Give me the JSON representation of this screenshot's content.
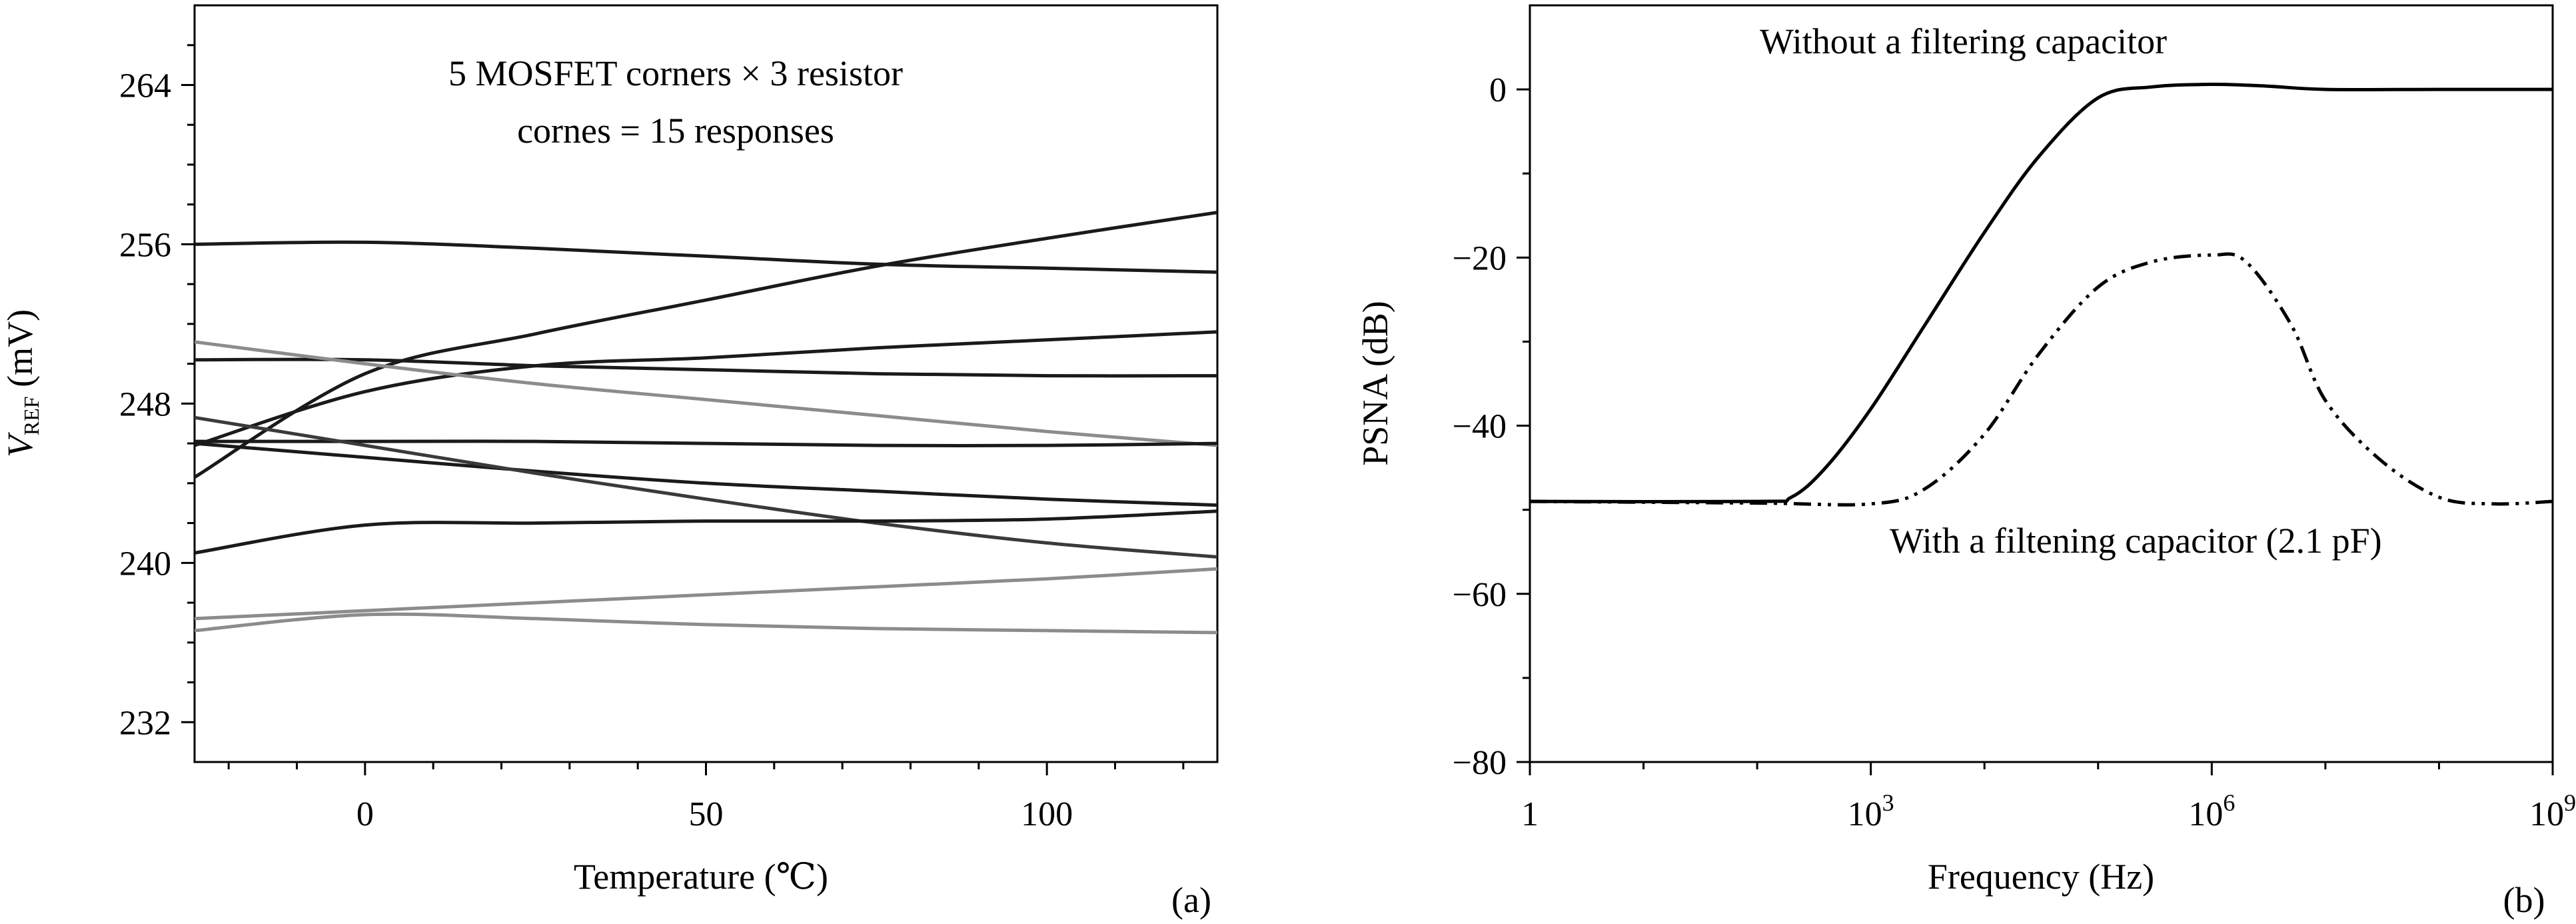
{
  "chart_data": [
    {
      "type": "line",
      "panel_label": "(a)",
      "title": "",
      "xlabel": "Temperature (℃)",
      "ylabel_main": "V",
      "ylabel_sub": "REF",
      "ylabel_unit": " (mV)",
      "xlim": [
        -25,
        125
      ],
      "ylim": [
        230,
        268
      ],
      "x_ticks": [
        0,
        50,
        100
      ],
      "y_ticks": [
        232,
        240,
        248,
        256,
        264
      ],
      "annotations": [
        "5 MOSFET corners × 3 resistor",
        "cornes = 15 responses"
      ],
      "x": [
        -25,
        0,
        25,
        50,
        75,
        100,
        125
      ],
      "series": [
        {
          "color": "#1a1a1a",
          "values": [
            256.0,
            256.1,
            255.8,
            255.4,
            255.0,
            254.8,
            254.6
          ]
        },
        {
          "color": "#1a1a1a",
          "values": [
            244.3,
            249.5,
            251.5,
            253.2,
            254.9,
            256.3,
            257.6
          ]
        },
        {
          "color": "#1a1a1a",
          "values": [
            245.9,
            248.6,
            249.9,
            250.3,
            250.8,
            251.2,
            251.6
          ]
        },
        {
          "color": "#1a1a1a",
          "values": [
            250.2,
            250.2,
            249.9,
            249.7,
            249.5,
            249.4,
            249.4
          ]
        },
        {
          "color": "#8c8c8c",
          "values": [
            251.1,
            250.0,
            249.0,
            248.2,
            247.4,
            246.6,
            245.9
          ]
        },
        {
          "color": "#1a1a1a",
          "values": [
            246.1,
            246.1,
            246.1,
            246.0,
            245.9,
            245.9,
            246.0
          ]
        },
        {
          "color": "#1a1a1a",
          "values": [
            246.0,
            245.3,
            244.6,
            244.0,
            243.6,
            243.2,
            242.9
          ]
        },
        {
          "color": "#3a3a3a",
          "values": [
            247.3,
            245.9,
            244.5,
            243.2,
            242.0,
            241.0,
            240.3
          ]
        },
        {
          "color": "#1a1a1a",
          "values": [
            240.5,
            241.9,
            242.0,
            242.1,
            242.1,
            242.2,
            242.6
          ]
        },
        {
          "color": "#8c8c8c",
          "values": [
            237.2,
            237.6,
            238.0,
            238.4,
            238.8,
            239.2,
            239.7
          ]
        },
        {
          "color": "#8c8c8c",
          "values": [
            236.6,
            237.4,
            237.2,
            236.9,
            236.7,
            236.6,
            236.5
          ]
        }
      ]
    },
    {
      "type": "line",
      "panel_label": "(b)",
      "title": "",
      "xlabel": "Frequency (Hz)",
      "ylabel": "PSNA (dB)",
      "x_scale": "log",
      "xlim": [
        1,
        1000000000
      ],
      "ylim": [
        -80,
        10
      ],
      "x_ticks": [
        {
          "value": 1,
          "base": "1",
          "exp": ""
        },
        {
          "value": 1000,
          "base": "10",
          "exp": "3"
        },
        {
          "value": 1000000,
          "base": "10",
          "exp": "6"
        },
        {
          "value": 1000000000,
          "base": "10",
          "exp": "9"
        }
      ],
      "y_ticks": [
        {
          "value": 0,
          "label": "0"
        },
        {
          "value": -20,
          "label": "−20"
        },
        {
          "value": -40,
          "label": "−40"
        },
        {
          "value": -60,
          "label": "−60"
        },
        {
          "value": -80,
          "label": "−80"
        }
      ],
      "annotations": [
        "Without a filtering capacitor",
        "With a filtening capacitor (2.1 pF)"
      ],
      "series": [
        {
          "style": "solid",
          "x": [
            1,
            100,
            200,
            400,
            1000,
            3000,
            10000,
            30000,
            100000,
            300000,
            1000000,
            3000000,
            10000000,
            100000000,
            1000000000
          ],
          "y": [
            -49,
            -49,
            -48.5,
            -45,
            -38,
            -28,
            -17,
            -8,
            -1,
            0.3,
            0.6,
            0.4,
            0,
            0,
            0
          ]
        },
        {
          "style": "dashdotdot",
          "x": [
            1,
            100,
            1000,
            3000,
            10000,
            30000,
            100000,
            300000,
            1000000,
            2000000,
            5000000,
            10000000,
            30000000,
            100000000,
            300000000,
            1000000000
          ],
          "y": [
            -49,
            -49.2,
            -49.3,
            -47.5,
            -41,
            -31.5,
            -23.5,
            -20.5,
            -19.7,
            -20.5,
            -28,
            -37,
            -44,
            -48.5,
            -49.3,
            -49
          ]
        }
      ]
    }
  ]
}
